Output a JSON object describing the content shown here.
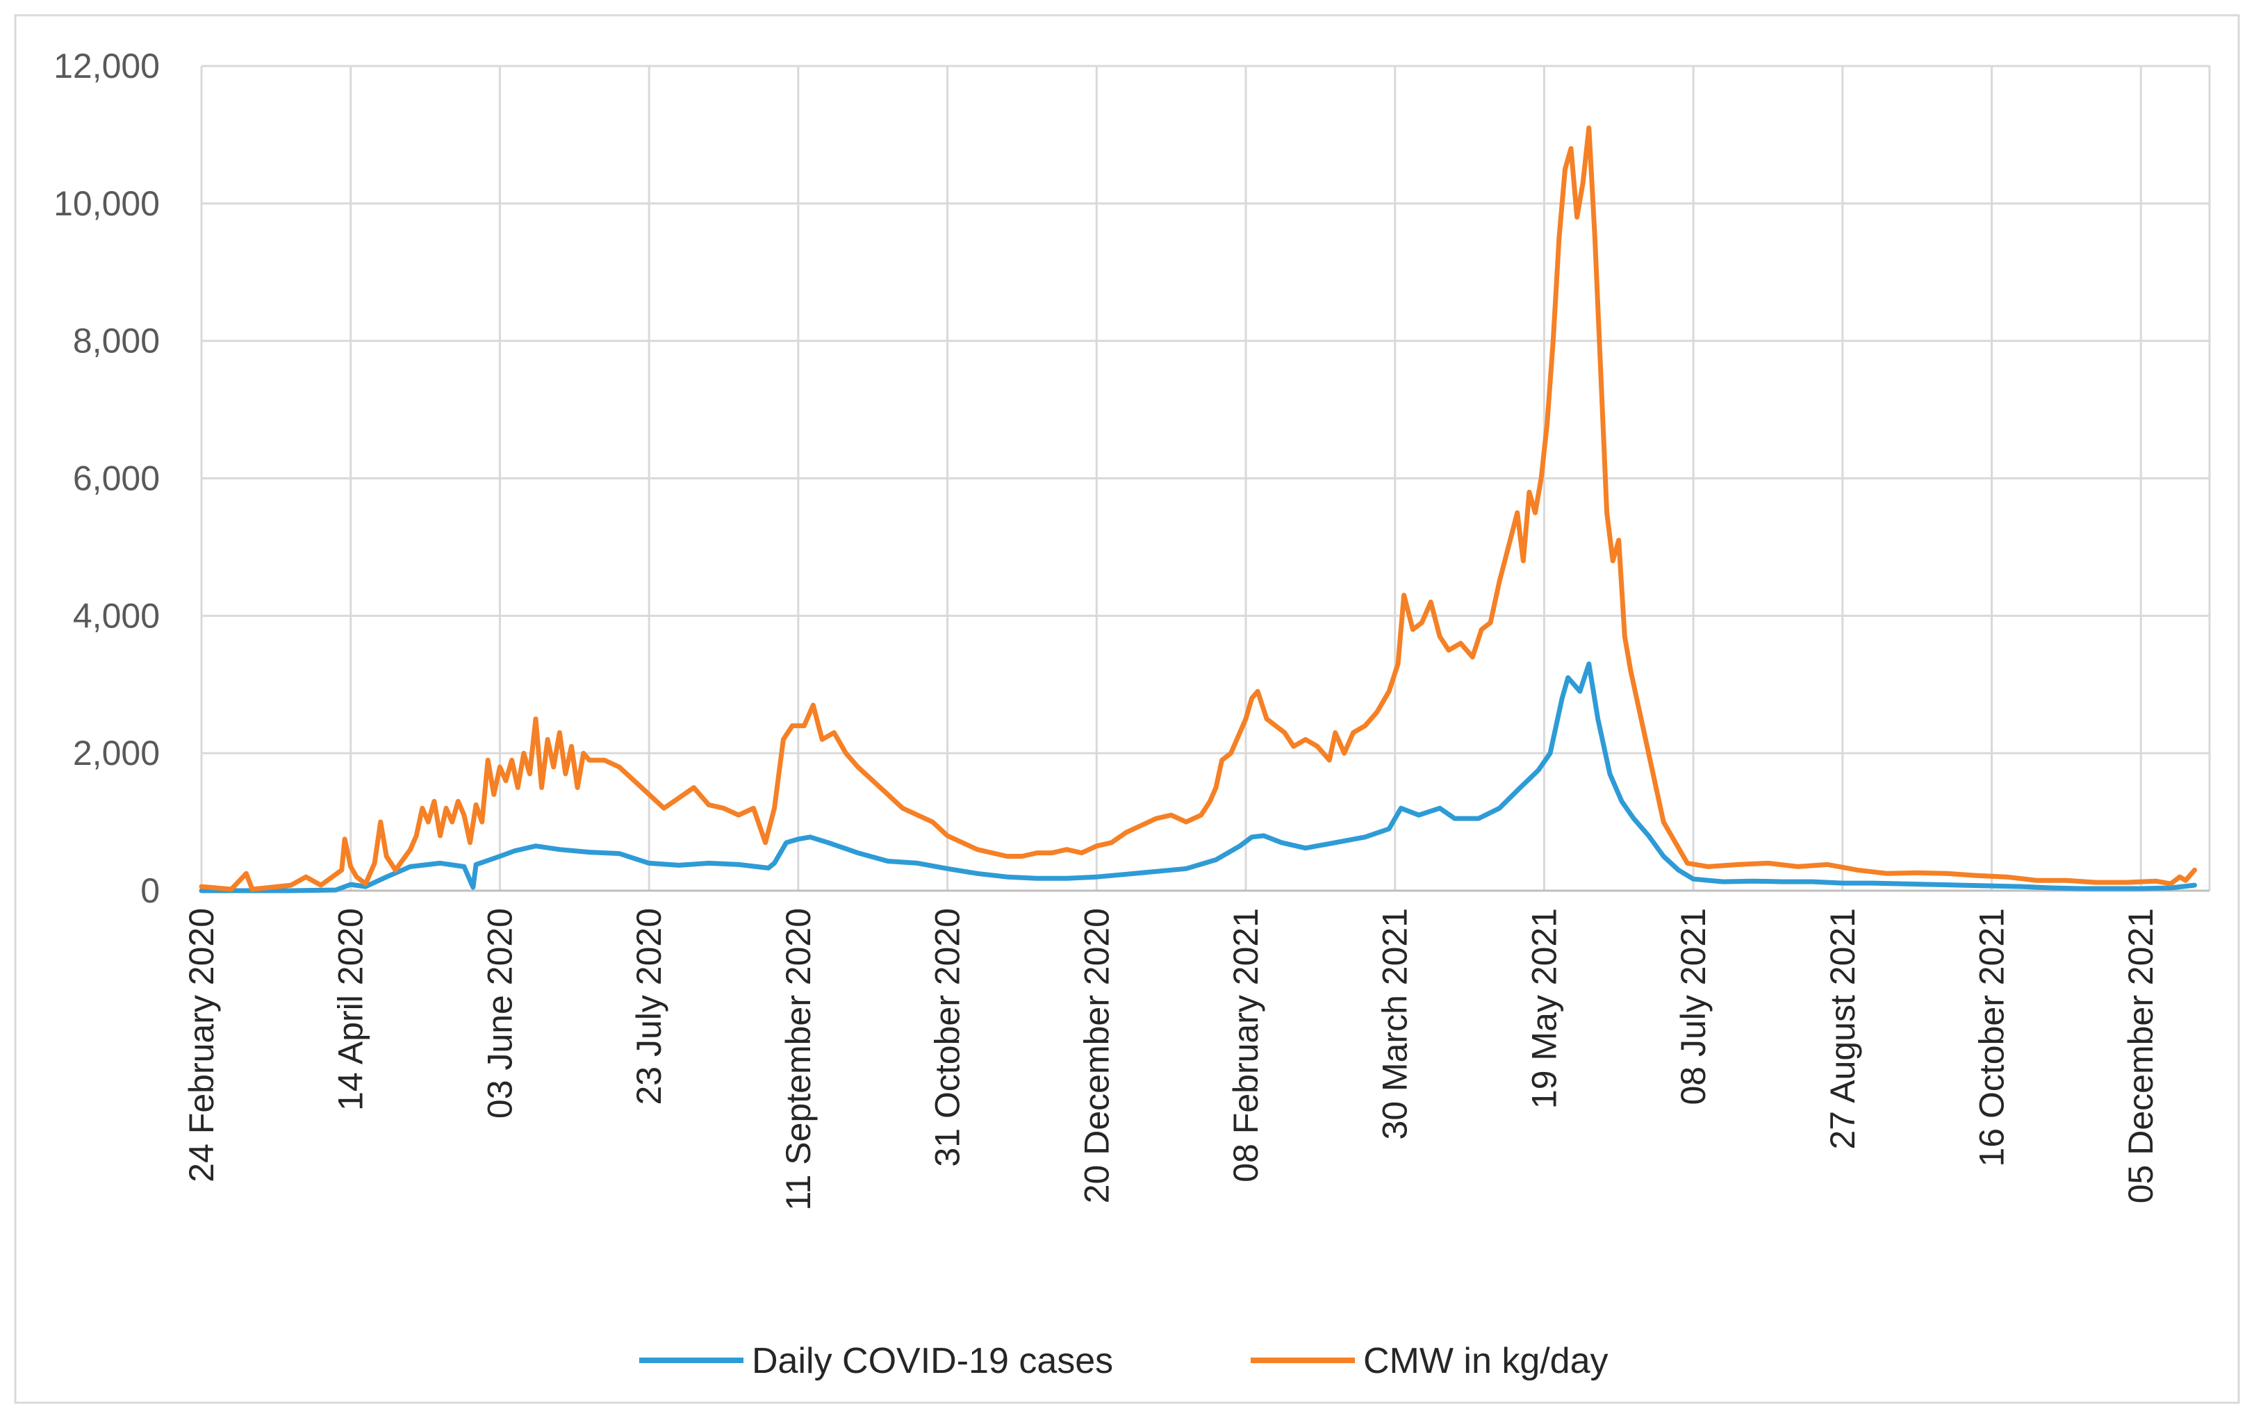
{
  "chart_data": {
    "type": "line",
    "title": "",
    "xlabel": "",
    "ylabel": "",
    "ylim": [
      0,
      12000
    ],
    "y_ticks": [
      0,
      2000,
      4000,
      6000,
      8000,
      10000,
      12000
    ],
    "y_tick_labels": [
      "0",
      "2,000",
      "4,000",
      "6,000",
      "8,000",
      "10,000",
      "12,000"
    ],
    "x_start": "24 February 2020",
    "x_end": "29 December 2021",
    "x_day_count": 674,
    "x_tick_labels": [
      "24 February 2020",
      "14 April 2020",
      "03 June 2020",
      "23 July 2020",
      "11 September 2020",
      "31 October 2020",
      "20 December 2020",
      "08 February 2021",
      "30 March 2021",
      "19 May 2021",
      "08 July 2021",
      "27 August 2021",
      "16 October 2021",
      "05 December 2021"
    ],
    "x_tick_days": [
      0,
      50,
      100,
      150,
      200,
      250,
      300,
      350,
      400,
      450,
      500,
      550,
      600,
      650
    ],
    "grid": true,
    "legend_position": "bottom",
    "series": [
      {
        "name": "Daily COVID-19 cases",
        "color": "#2E9BD6",
        "points": [
          [
            0,
            0
          ],
          [
            30,
            0
          ],
          [
            45,
            10
          ],
          [
            50,
            90
          ],
          [
            55,
            60
          ],
          [
            62,
            200
          ],
          [
            70,
            350
          ],
          [
            80,
            400
          ],
          [
            88,
            350
          ],
          [
            91,
            50
          ],
          [
            92,
            380
          ],
          [
            100,
            500
          ],
          [
            105,
            580
          ],
          [
            112,
            650
          ],
          [
            120,
            600
          ],
          [
            130,
            560
          ],
          [
            140,
            540
          ],
          [
            150,
            400
          ],
          [
            160,
            370
          ],
          [
            170,
            400
          ],
          [
            180,
            380
          ],
          [
            190,
            330
          ],
          [
            192,
            400
          ],
          [
            196,
            700
          ],
          [
            200,
            750
          ],
          [
            204,
            780
          ],
          [
            210,
            700
          ],
          [
            220,
            550
          ],
          [
            230,
            430
          ],
          [
            240,
            400
          ],
          [
            250,
            320
          ],
          [
            260,
            250
          ],
          [
            270,
            200
          ],
          [
            280,
            180
          ],
          [
            290,
            180
          ],
          [
            300,
            200
          ],
          [
            310,
            240
          ],
          [
            320,
            280
          ],
          [
            330,
            320
          ],
          [
            340,
            450
          ],
          [
            348,
            650
          ],
          [
            352,
            780
          ],
          [
            356,
            800
          ],
          [
            362,
            700
          ],
          [
            370,
            620
          ],
          [
            380,
            700
          ],
          [
            390,
            780
          ],
          [
            398,
            900
          ],
          [
            402,
            1200
          ],
          [
            408,
            1100
          ],
          [
            415,
            1200
          ],
          [
            420,
            1050
          ],
          [
            428,
            1050
          ],
          [
            435,
            1200
          ],
          [
            442,
            1500
          ],
          [
            448,
            1750
          ],
          [
            452,
            2000
          ],
          [
            456,
            2800
          ],
          [
            458,
            3100
          ],
          [
            462,
            2900
          ],
          [
            465,
            3300
          ],
          [
            468,
            2500
          ],
          [
            472,
            1700
          ],
          [
            476,
            1300
          ],
          [
            480,
            1050
          ],
          [
            485,
            800
          ],
          [
            490,
            500
          ],
          [
            495,
            300
          ],
          [
            500,
            170
          ],
          [
            510,
            130
          ],
          [
            520,
            140
          ],
          [
            530,
            130
          ],
          [
            540,
            130
          ],
          [
            550,
            110
          ],
          [
            560,
            110
          ],
          [
            570,
            100
          ],
          [
            580,
            90
          ],
          [
            590,
            80
          ],
          [
            600,
            70
          ],
          [
            610,
            60
          ],
          [
            620,
            40
          ],
          [
            630,
            30
          ],
          [
            640,
            30
          ],
          [
            650,
            30
          ],
          [
            660,
            40
          ],
          [
            668,
            80
          ]
        ]
      },
      {
        "name": "CMW in kg/day",
        "color": "#F58025",
        "points": [
          [
            0,
            60
          ],
          [
            10,
            20
          ],
          [
            15,
            250
          ],
          [
            17,
            20
          ],
          [
            30,
            80
          ],
          [
            35,
            200
          ],
          [
            40,
            80
          ],
          [
            47,
            300
          ],
          [
            48,
            750
          ],
          [
            50,
            350
          ],
          [
            52,
            200
          ],
          [
            55,
            100
          ],
          [
            58,
            400
          ],
          [
            60,
            1000
          ],
          [
            62,
            500
          ],
          [
            65,
            300
          ],
          [
            70,
            600
          ],
          [
            72,
            800
          ],
          [
            74,
            1200
          ],
          [
            76,
            1000
          ],
          [
            78,
            1300
          ],
          [
            80,
            800
          ],
          [
            82,
            1200
          ],
          [
            84,
            1000
          ],
          [
            86,
            1300
          ],
          [
            88,
            1100
          ],
          [
            90,
            700
          ],
          [
            92,
            1250
          ],
          [
            94,
            1000
          ],
          [
            96,
            1900
          ],
          [
            98,
            1400
          ],
          [
            100,
            1800
          ],
          [
            102,
            1600
          ],
          [
            104,
            1900
          ],
          [
            106,
            1500
          ],
          [
            108,
            2000
          ],
          [
            110,
            1700
          ],
          [
            112,
            2500
          ],
          [
            114,
            1500
          ],
          [
            116,
            2200
          ],
          [
            118,
            1800
          ],
          [
            120,
            2300
          ],
          [
            122,
            1700
          ],
          [
            124,
            2100
          ],
          [
            126,
            1500
          ],
          [
            128,
            2000
          ],
          [
            130,
            1900
          ],
          [
            135,
            1900
          ],
          [
            140,
            1800
          ],
          [
            145,
            1600
          ],
          [
            150,
            1400
          ],
          [
            155,
            1200
          ],
          [
            160,
            1350
          ],
          [
            165,
            1500
          ],
          [
            170,
            1250
          ],
          [
            175,
            1200
          ],
          [
            180,
            1100
          ],
          [
            185,
            1200
          ],
          [
            189,
            700
          ],
          [
            192,
            1200
          ],
          [
            195,
            2200
          ],
          [
            198,
            2400
          ],
          [
            202,
            2400
          ],
          [
            205,
            2700
          ],
          [
            208,
            2200
          ],
          [
            212,
            2300
          ],
          [
            216,
            2000
          ],
          [
            220,
            1800
          ],
          [
            225,
            1600
          ],
          [
            230,
            1400
          ],
          [
            235,
            1200
          ],
          [
            240,
            1100
          ],
          [
            245,
            1000
          ],
          [
            250,
            800
          ],
          [
            255,
            700
          ],
          [
            260,
            600
          ],
          [
            265,
            550
          ],
          [
            270,
            500
          ],
          [
            275,
            500
          ],
          [
            280,
            550
          ],
          [
            285,
            550
          ],
          [
            290,
            600
          ],
          [
            295,
            550
          ],
          [
            300,
            650
          ],
          [
            305,
            700
          ],
          [
            310,
            850
          ],
          [
            315,
            950
          ],
          [
            320,
            1050
          ],
          [
            325,
            1100
          ],
          [
            330,
            1000
          ],
          [
            335,
            1100
          ],
          [
            338,
            1300
          ],
          [
            340,
            1500
          ],
          [
            342,
            1900
          ],
          [
            345,
            2000
          ],
          [
            348,
            2300
          ],
          [
            350,
            2500
          ],
          [
            352,
            2800
          ],
          [
            354,
            2900
          ],
          [
            357,
            2500
          ],
          [
            360,
            2400
          ],
          [
            363,
            2300
          ],
          [
            366,
            2100
          ],
          [
            370,
            2200
          ],
          [
            374,
            2100
          ],
          [
            378,
            1900
          ],
          [
            380,
            2300
          ],
          [
            383,
            2000
          ],
          [
            386,
            2300
          ],
          [
            390,
            2400
          ],
          [
            394,
            2600
          ],
          [
            398,
            2900
          ],
          [
            401,
            3300
          ],
          [
            403,
            4300
          ],
          [
            406,
            3800
          ],
          [
            409,
            3900
          ],
          [
            412,
            4200
          ],
          [
            415,
            3700
          ],
          [
            418,
            3500
          ],
          [
            422,
            3600
          ],
          [
            426,
            3400
          ],
          [
            429,
            3800
          ],
          [
            432,
            3900
          ],
          [
            435,
            4500
          ],
          [
            438,
            5000
          ],
          [
            441,
            5500
          ],
          [
            443,
            4800
          ],
          [
            445,
            5800
          ],
          [
            447,
            5500
          ],
          [
            449,
            6000
          ],
          [
            451,
            6800
          ],
          [
            453,
            8000
          ],
          [
            455,
            9500
          ],
          [
            457,
            10500
          ],
          [
            459,
            10800
          ],
          [
            461,
            9800
          ],
          [
            463,
            10300
          ],
          [
            465,
            11100
          ],
          [
            467,
            9500
          ],
          [
            469,
            7500
          ],
          [
            471,
            5500
          ],
          [
            473,
            4800
          ],
          [
            475,
            5100
          ],
          [
            477,
            3700
          ],
          [
            479,
            3200
          ],
          [
            482,
            2600
          ],
          [
            486,
            1800
          ],
          [
            490,
            1000
          ],
          [
            494,
            700
          ],
          [
            498,
            400
          ],
          [
            505,
            350
          ],
          [
            515,
            380
          ],
          [
            525,
            400
          ],
          [
            535,
            350
          ],
          [
            545,
            380
          ],
          [
            555,
            300
          ],
          [
            565,
            250
          ],
          [
            575,
            260
          ],
          [
            585,
            250
          ],
          [
            595,
            220
          ],
          [
            605,
            200
          ],
          [
            615,
            150
          ],
          [
            625,
            150
          ],
          [
            635,
            120
          ],
          [
            645,
            120
          ],
          [
            655,
            140
          ],
          [
            660,
            100
          ],
          [
            663,
            200
          ],
          [
            665,
            150
          ],
          [
            668,
            300
          ]
        ]
      }
    ]
  }
}
